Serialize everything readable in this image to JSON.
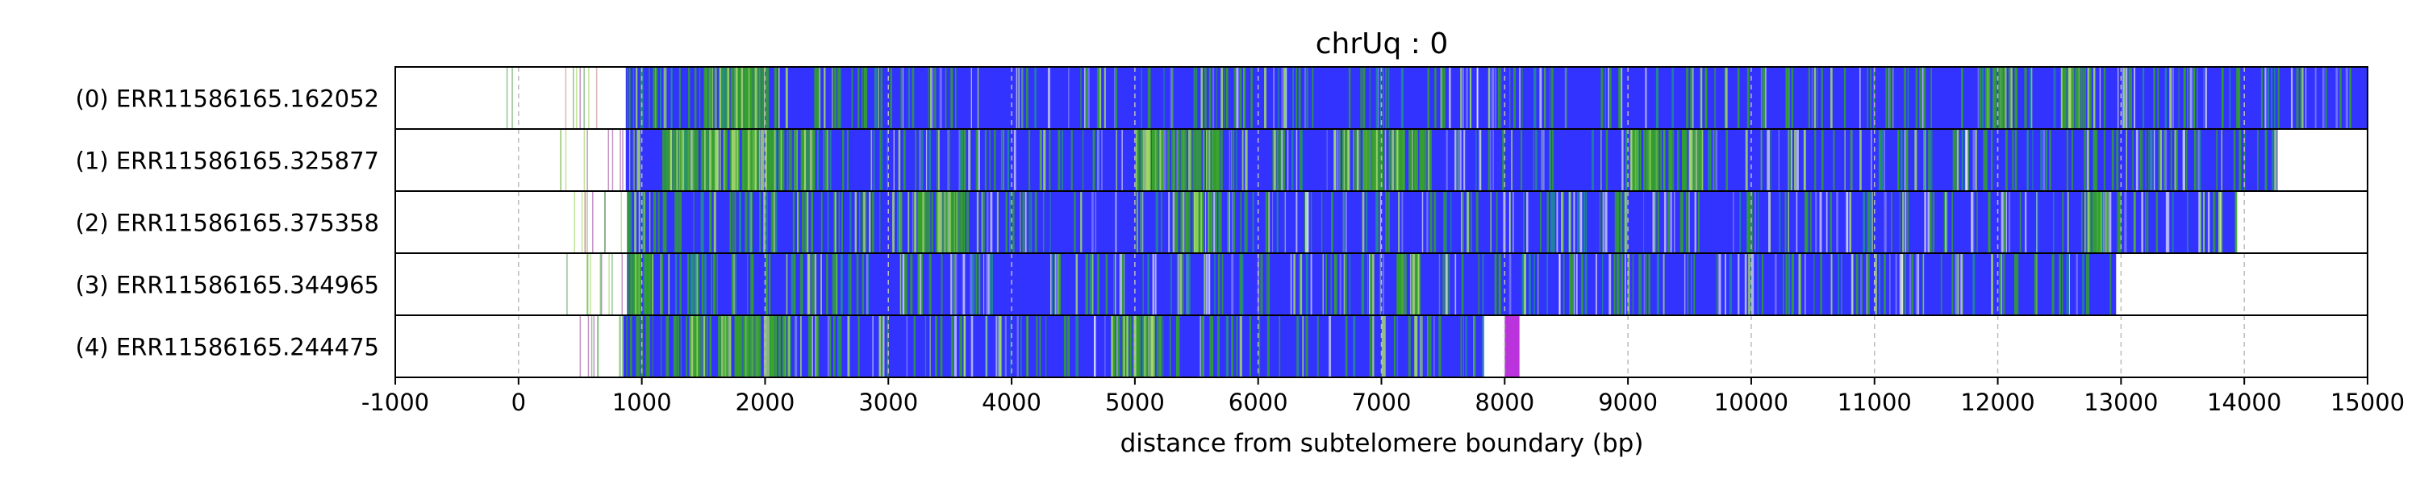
{
  "chart_data": {
    "type": "heatmap",
    "title": "chrUq : 0",
    "xlabel": "distance from subtelomere boundary (bp)",
    "ylabel": "",
    "xlim": [
      -1000,
      15000
    ],
    "xticks": [
      "-1000",
      "0",
      "1000",
      "2000",
      "3000",
      "4000",
      "5000",
      "6000",
      "7000",
      "8000",
      "9000",
      "10000",
      "11000",
      "12000",
      "13000",
      "14000",
      "15000"
    ],
    "grid": "vertical dashed",
    "rows": [
      {
        "label": "(0) ERR11586165.162052",
        "start": 870,
        "end": 15000,
        "faint_start": -300
      },
      {
        "label": "(1) ERR11586165.325877",
        "start": 870,
        "end": 14270,
        "faint_start": 330
      },
      {
        "label": "(2) ERR11586165.375358",
        "start": 880,
        "end": 13930,
        "faint_start": 340
      },
      {
        "label": "(3) ERR11586165.344965",
        "start": 880,
        "end": 12960,
        "faint_start": 350
      },
      {
        "label": "(4) ERR11586165.244475",
        "start": 850,
        "end": 7820,
        "faint_start": 430,
        "magenta_block": [
          8000,
          8120
        ]
      }
    ],
    "colors": {
      "base": "#3333ff",
      "green": "#33a02c",
      "yellowgreen": "#a6d96a",
      "teal": "#1f8f8f",
      "magenta": "#bb33dd",
      "faint": "#cc9999",
      "grid": "#bbbbbb"
    }
  }
}
